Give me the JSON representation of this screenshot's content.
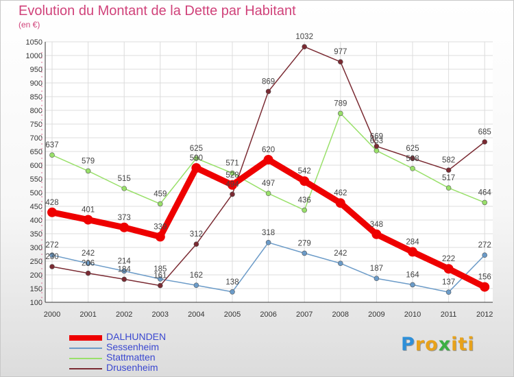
{
  "chart_data": {
    "type": "line",
    "title": "Evolution du Montant de la Dette par Habitant",
    "subtitle": "(en €)",
    "xlabel": "",
    "ylabel": "",
    "x": [
      "2000",
      "2001",
      "2002",
      "2003",
      "2004",
      "2005",
      "2006",
      "2007",
      "2008",
      "2009",
      "2010",
      "2011",
      "2012"
    ],
    "ylim": [
      100,
      1050
    ],
    "yticks": [
      100,
      150,
      200,
      250,
      300,
      350,
      400,
      450,
      500,
      550,
      600,
      650,
      700,
      750,
      800,
      850,
      900,
      950,
      1000,
      1050
    ],
    "grid": true,
    "legend_position": "bottom-left",
    "series": [
      {
        "name": "DALHUNDEN",
        "color": "#ee0000",
        "values": [
          428,
          401,
          373,
          339,
          590,
          528,
          620,
          542,
          462,
          348,
          284,
          222,
          156
        ],
        "labels": [
          "428",
          "401",
          "373",
          "339",
          "590",
          "528",
          "620",
          "542",
          "462",
          "348",
          "284",
          "222",
          "156"
        ]
      },
      {
        "name": "Sessenheim",
        "color": "#6b9bc8",
        "values": [
          272,
          242,
          214,
          185,
          162,
          138,
          318,
          279,
          242,
          187,
          164,
          137,
          272
        ],
        "labels": [
          "272",
          "242",
          "214",
          "185",
          "162",
          "138",
          "318",
          "279",
          "242",
          "187",
          "164",
          "137",
          "272"
        ]
      },
      {
        "name": "Stattmatten",
        "color": "#99e06a",
        "values": [
          637,
          579,
          515,
          459,
          625,
          571,
          497,
          436,
          789,
          653,
          588,
          517,
          464
        ],
        "labels": [
          "637",
          "579",
          "515",
          "459",
          "625",
          "571",
          "497",
          "436",
          "789",
          "653",
          "588",
          "517",
          "464"
        ]
      },
      {
        "name": "Drusenheim",
        "color": "#7a2a32",
        "values": [
          230,
          206,
          184,
          161,
          312,
          494,
          869,
          1032,
          977,
          669,
          625,
          582,
          685
        ],
        "labels": [
          "230",
          "206",
          "184",
          "161",
          "312",
          "494",
          "869",
          "1032",
          "977",
          "669",
          "625",
          "582",
          "685"
        ]
      }
    ]
  },
  "logo": {
    "letters": [
      {
        "char": "P",
        "color": "#2e8fd8"
      },
      {
        "char": "r",
        "color": "#e8a21a"
      },
      {
        "char": "o",
        "color": "#e8a21a"
      },
      {
        "char": "x",
        "color": "#3cb043"
      },
      {
        "char": "i",
        "color": "#e8a21a"
      },
      {
        "char": "t",
        "color": "#e8a21a"
      },
      {
        "char": "i",
        "color": "#e8a21a"
      }
    ]
  }
}
